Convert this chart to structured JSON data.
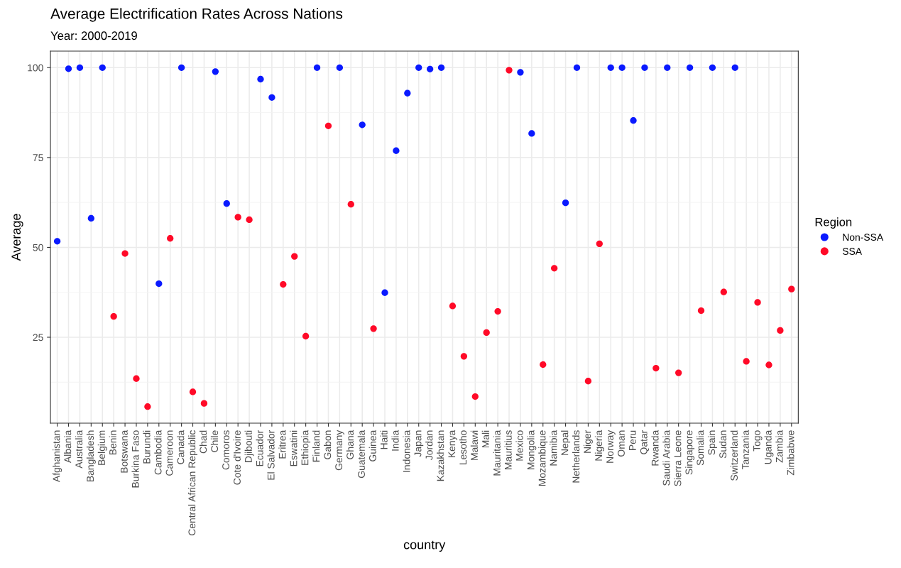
{
  "chart_data": {
    "type": "scatter",
    "title": "Average Electrification Rates Across Nations",
    "subtitle": "Year: 2000-2019",
    "xlabel": "country",
    "ylabel": "Average",
    "legend_title": "Region",
    "categories": [
      "Afghanistan",
      "Albania",
      "Australia",
      "Bangladesh",
      "Belgium",
      "Benin",
      "Botswana",
      "Burkina Faso",
      "Burundi",
      "Cambodia",
      "Cameroon",
      "Canada",
      "Central African Republic",
      "Chad",
      "Chile",
      "Comoros",
      "Cote d'Ivoire",
      "Djibouti",
      "Ecuador",
      "El Salvador",
      "Eritrea",
      "Eswatini",
      "Ethiopia",
      "Finland",
      "Gabon",
      "Germany",
      "Ghana",
      "Guatemala",
      "Guinea",
      "Haiti",
      "India",
      "Indonesia",
      "Japan",
      "Jordan",
      "Kazakhstan",
      "Kenya",
      "Lesotho",
      "Malawi",
      "Mali",
      "Mauritania",
      "Mauritius",
      "Mexico",
      "Mongolia",
      "Mozambique",
      "Namibia",
      "Nepal",
      "Netherlands",
      "Niger",
      "Nigeria",
      "Norway",
      "Oman",
      "Peru",
      "Qatar",
      "Rwanda",
      "Saudi Arabia",
      "Sierra Leone",
      "Singapore",
      "Somalia",
      "Spain",
      "Sudan",
      "Switzerland",
      "Tanzania",
      "Togo",
      "Uganda",
      "Zambia",
      "Zimbabwe"
    ],
    "series": [
      {
        "name": "Non-SSA",
        "color": "#0a1aff",
        "values": [
          51.7,
          99.7,
          100,
          58.1,
          100,
          null,
          null,
          null,
          null,
          39.9,
          null,
          100,
          null,
          null,
          98.9,
          62.2,
          null,
          null,
          96.8,
          91.7,
          null,
          null,
          null,
          100,
          null,
          100,
          null,
          84.1,
          null,
          37.4,
          76.9,
          92.9,
          100,
          99.6,
          100,
          null,
          null,
          null,
          null,
          null,
          null,
          98.7,
          81.7,
          null,
          null,
          62.4,
          100,
          null,
          null,
          100,
          100,
          85.3,
          100,
          null,
          100,
          null,
          100,
          null,
          100,
          null,
          100,
          null,
          null,
          null,
          null,
          null
        ]
      },
      {
        "name": "SSA",
        "color": "#ff0a28",
        "values": [
          null,
          null,
          null,
          null,
          null,
          30.8,
          48.3,
          13.5,
          5.7,
          null,
          52.5,
          null,
          9.8,
          6.6,
          null,
          null,
          58.4,
          57.7,
          null,
          null,
          39.7,
          47.5,
          25.3,
          null,
          83.8,
          null,
          62.0,
          null,
          27.4,
          null,
          null,
          null,
          null,
          null,
          null,
          33.7,
          19.7,
          8.5,
          26.3,
          32.2,
          99.3,
          null,
          null,
          17.4,
          44.2,
          null,
          null,
          12.8,
          51.0,
          null,
          null,
          null,
          null,
          16.4,
          null,
          15.1,
          null,
          32.4,
          null,
          37.6,
          null,
          18.3,
          34.7,
          17.3,
          26.9,
          38.4
        ]
      }
    ],
    "ylim": [
      1.1,
      104.6
    ],
    "yticks": [
      25,
      50,
      75,
      100
    ],
    "grid": true,
    "legend": "right",
    "marker": "circle"
  }
}
